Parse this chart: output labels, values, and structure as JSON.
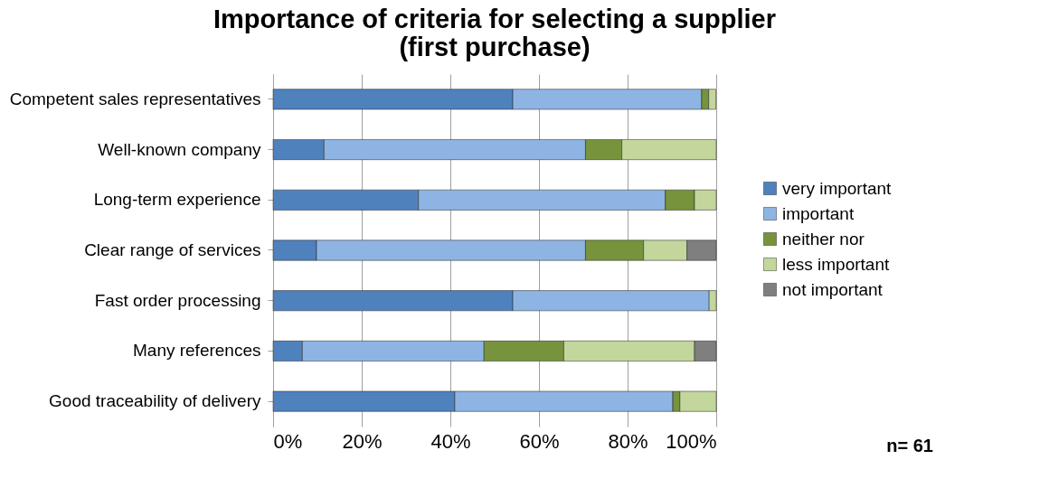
{
  "chart_data": {
    "type": "bar",
    "orientation": "horizontal",
    "stacked": true,
    "title": "Importance of criteria for selecting a supplier\n(first purchase)",
    "categories": [
      "Competent sales representatives",
      "Well-known company",
      "Long-term experience",
      "Clear range of services",
      "Fast order processing",
      "Many references",
      "Good traceability of delivery"
    ],
    "series": [
      {
        "name": "very important",
        "color": "#4f81bd",
        "values": [
          54.1,
          11.5,
          32.8,
          9.8,
          54.1,
          6.6,
          41.0
        ]
      },
      {
        "name": "important",
        "color": "#8eb4e3",
        "values": [
          42.6,
          59.0,
          55.7,
          60.7,
          44.3,
          41.0,
          49.2
        ]
      },
      {
        "name": "neither nor",
        "color": "#77933c",
        "values": [
          1.6,
          8.2,
          6.6,
          13.1,
          0,
          18.0,
          1.6
        ]
      },
      {
        "name": "less important",
        "color": "#c3d69b",
        "values": [
          1.6,
          21.3,
          4.9,
          9.8,
          1.6,
          29.5,
          8.2
        ]
      },
      {
        "name": "not important",
        "color": "#7f7f7f",
        "values": [
          0,
          0,
          0,
          6.6,
          0,
          4.9,
          0
        ]
      }
    ],
    "xlim": [
      0,
      100
    ],
    "xticks": [
      {
        "value": 0,
        "label": "0%"
      },
      {
        "value": 20,
        "label": "20%"
      },
      {
        "value": 40,
        "label": "40%"
      },
      {
        "value": 60,
        "label": "60%"
      },
      {
        "value": 80,
        "label": "80%"
      },
      {
        "value": 100,
        "label": "100%"
      }
    ],
    "grid": "x",
    "legend": "right",
    "annotations": [
      "n= 61"
    ]
  }
}
